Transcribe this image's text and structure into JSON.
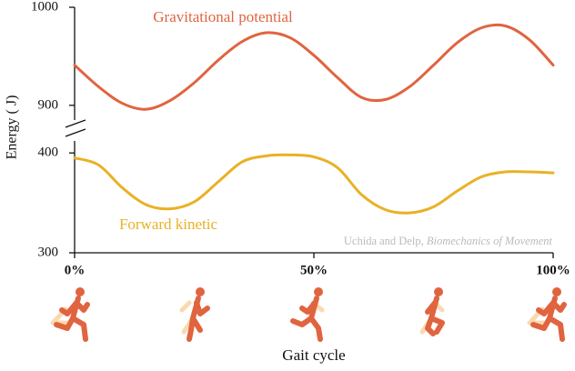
{
  "chart_data": {
    "type": "line",
    "ylabel": "Energy ( J)",
    "xlabel": "Gait cycle",
    "annotation": [
      "Uchida and Delp,",
      "Biomechanics of Movement"
    ],
    "x": [
      0,
      5,
      10,
      15,
      20,
      25,
      30,
      35,
      40,
      45,
      50,
      55,
      60,
      65,
      70,
      75,
      80,
      85,
      90,
      95,
      100
    ],
    "xlim": [
      0,
      100
    ],
    "xticks": [
      {
        "value": 0,
        "label": "0%"
      },
      {
        "value": 50,
        "label": "50%"
      },
      {
        "value": 100,
        "label": "100%"
      }
    ],
    "ylim": [
      300,
      412
    ],
    "yticks": [
      300,
      400
    ],
    "y2lim": [
      885,
      1000
    ],
    "y2ticks": [
      900,
      1000
    ],
    "series": [
      {
        "name": "Gravitational potential",
        "color": "#e0643f",
        "axis": "y2",
        "values": [
          941,
          919,
          902,
          896,
          905,
          923,
          946,
          965,
          974,
          969,
          951,
          928,
          908,
          906,
          919,
          941,
          964,
          979,
          981,
          967,
          941
        ]
      },
      {
        "name": "Forward kinetic",
        "color": "#e9b125",
        "values": [
          395,
          388,
          365,
          348,
          344,
          351,
          371,
          391,
          397,
          398,
          396,
          385,
          358,
          343,
          340,
          346,
          362,
          376,
          381,
          381,
          380
        ]
      }
    ]
  }
}
